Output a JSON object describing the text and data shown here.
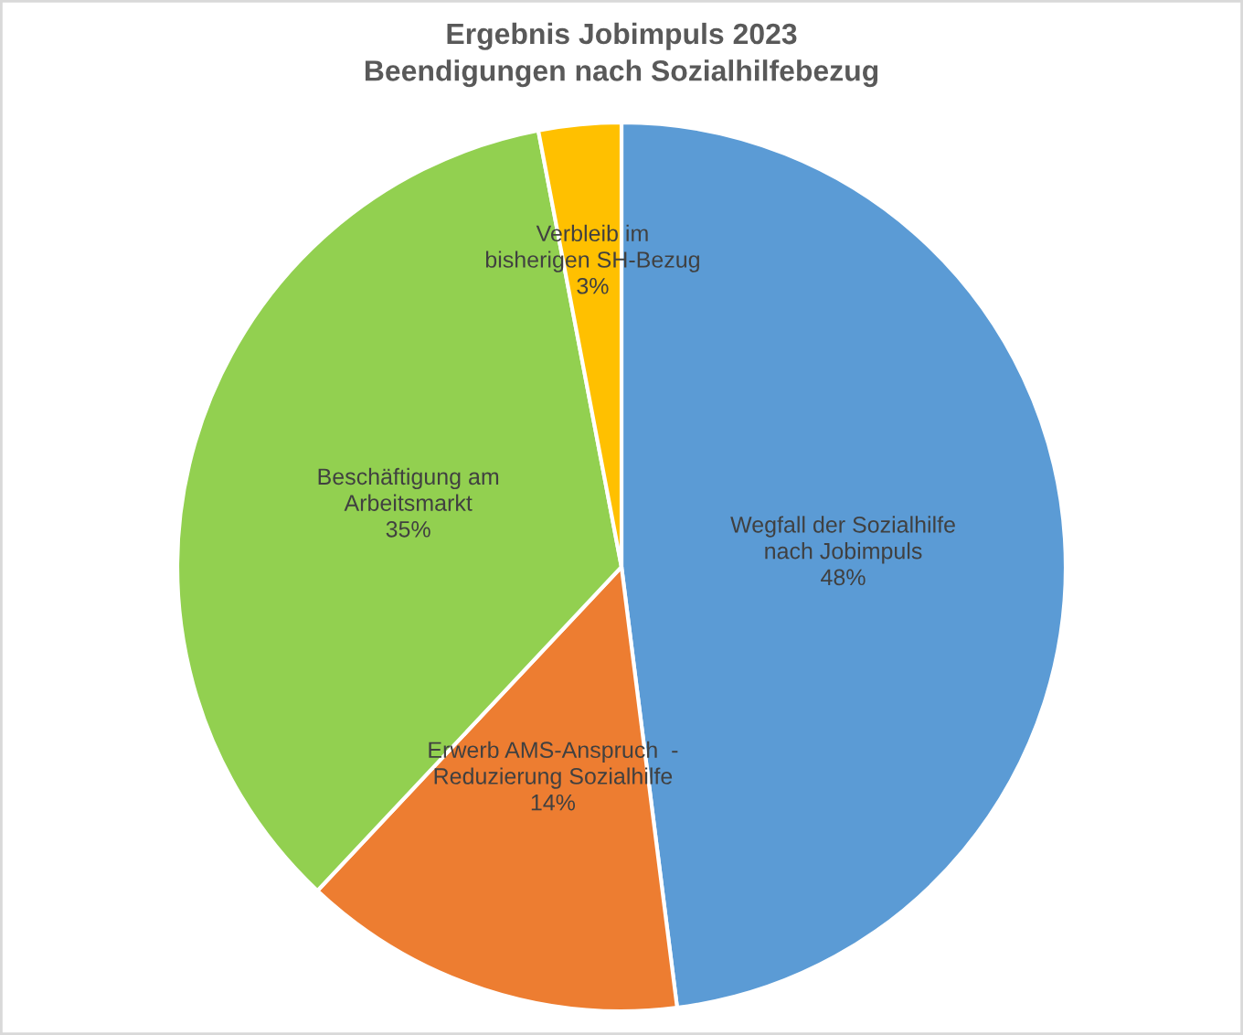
{
  "chart_data": {
    "type": "pie",
    "title": "Ergebnis Jobimpuls 2023\nBeendigungen nach Sozialhilfebezug",
    "categories": [
      "Wegfall der Sozialhilfe\nnach Jobimpuls",
      "Erwerb AMS-Anspruch  -\nReduzierung Sozialhilfe",
      "Beschäftigung am\nArbeitsmarkt",
      "Verbleib im\nbisherigen SH-Bezug"
    ],
    "values": [
      48,
      14,
      35,
      3
    ],
    "value_labels": [
      "48%",
      "14%",
      "35%",
      "3%"
    ],
    "colors": [
      "#5b9bd5",
      "#ed7d31",
      "#92d050",
      "#ffc000"
    ]
  }
}
